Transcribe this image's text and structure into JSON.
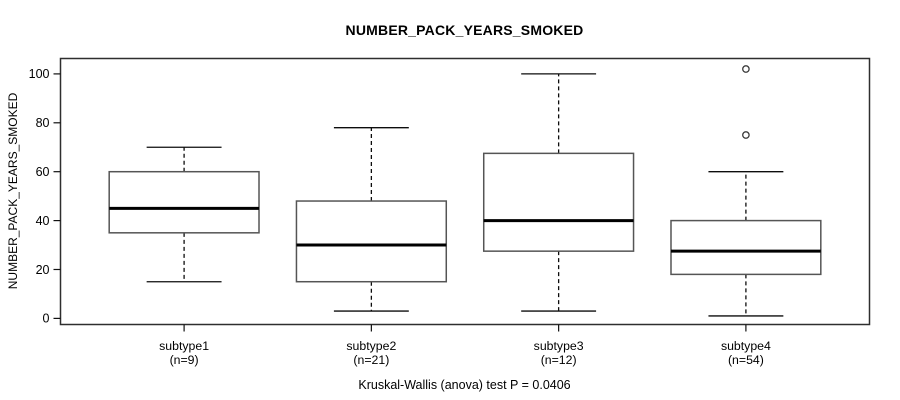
{
  "title": "NUMBER_PACK_YEARS_SMOKED",
  "caption": "Kruskal-Wallis (anova) test P = 0.0406",
  "chart_data": {
    "type": "boxplot",
    "title": "NUMBER_PACK_YEARS_SMOKED",
    "ylabel": "NUMBER_PACK_YEARS_SMOKED",
    "xlabel": "",
    "sub_caption": "Kruskal-Wallis (anova) test P = 0.0406",
    "yticks": [
      0,
      20,
      40,
      60,
      80,
      100
    ],
    "ylim": [
      0,
      100
    ],
    "y_domain": [
      -2.5,
      106.3
    ],
    "x_domain": [
      0.34,
      4.66
    ],
    "grid": false,
    "legend": "none",
    "box_width_units": 0.8,
    "cap_width_units": 0.4,
    "groups": [
      {
        "label": "subtype1",
        "n_label": "(n=9)",
        "position": 1,
        "whisker_low": 15,
        "q1": 35,
        "median": 45,
        "q3": 60,
        "whisker_high": 70,
        "outliers": []
      },
      {
        "label": "subtype2",
        "n_label": "(n=21)",
        "position": 2,
        "whisker_low": 3,
        "q1": 15,
        "median": 30,
        "q3": 48,
        "whisker_high": 78,
        "outliers": []
      },
      {
        "label": "subtype3",
        "n_label": "(n=12)",
        "position": 3,
        "whisker_low": 3,
        "q1": 27.5,
        "median": 40,
        "q3": 67.5,
        "whisker_high": 100,
        "outliers": []
      },
      {
        "label": "subtype4",
        "n_label": "(n=54)",
        "position": 4,
        "whisker_low": 1,
        "q1": 18,
        "median": 27.5,
        "q3": 40,
        "whisker_high": 60,
        "outliers": [
          75,
          102
        ]
      }
    ],
    "colors": {
      "background": "#ffffff",
      "frame": "#2e2e2e",
      "box_border": "#555555",
      "box_fill": "#ffffff",
      "median": "#000000",
      "whisker": "#0d0d0d",
      "outlier": "#3a3a3a",
      "tick": "#111111",
      "text": "#000000"
    }
  }
}
